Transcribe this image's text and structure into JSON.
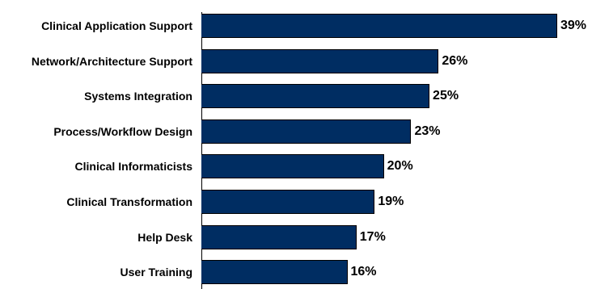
{
  "chart_data": {
    "type": "bar",
    "orientation": "horizontal",
    "categories": [
      "Clinical Application Support",
      "Network/Architecture Support",
      "Systems Integration",
      "Process/Workflow Design",
      "Clinical Informaticists",
      "Clinical Transformation",
      "Help Desk",
      "User Training"
    ],
    "values": [
      39,
      26,
      25,
      23,
      20,
      19,
      17,
      16
    ],
    "value_labels": [
      "39%",
      "26%",
      "25%",
      "23%",
      "20%",
      "19%",
      "17%",
      "16%"
    ],
    "unit": "%",
    "xlim": [
      0,
      39
    ],
    "grid": false,
    "legend": "none",
    "bar_color": "#002d62"
  }
}
